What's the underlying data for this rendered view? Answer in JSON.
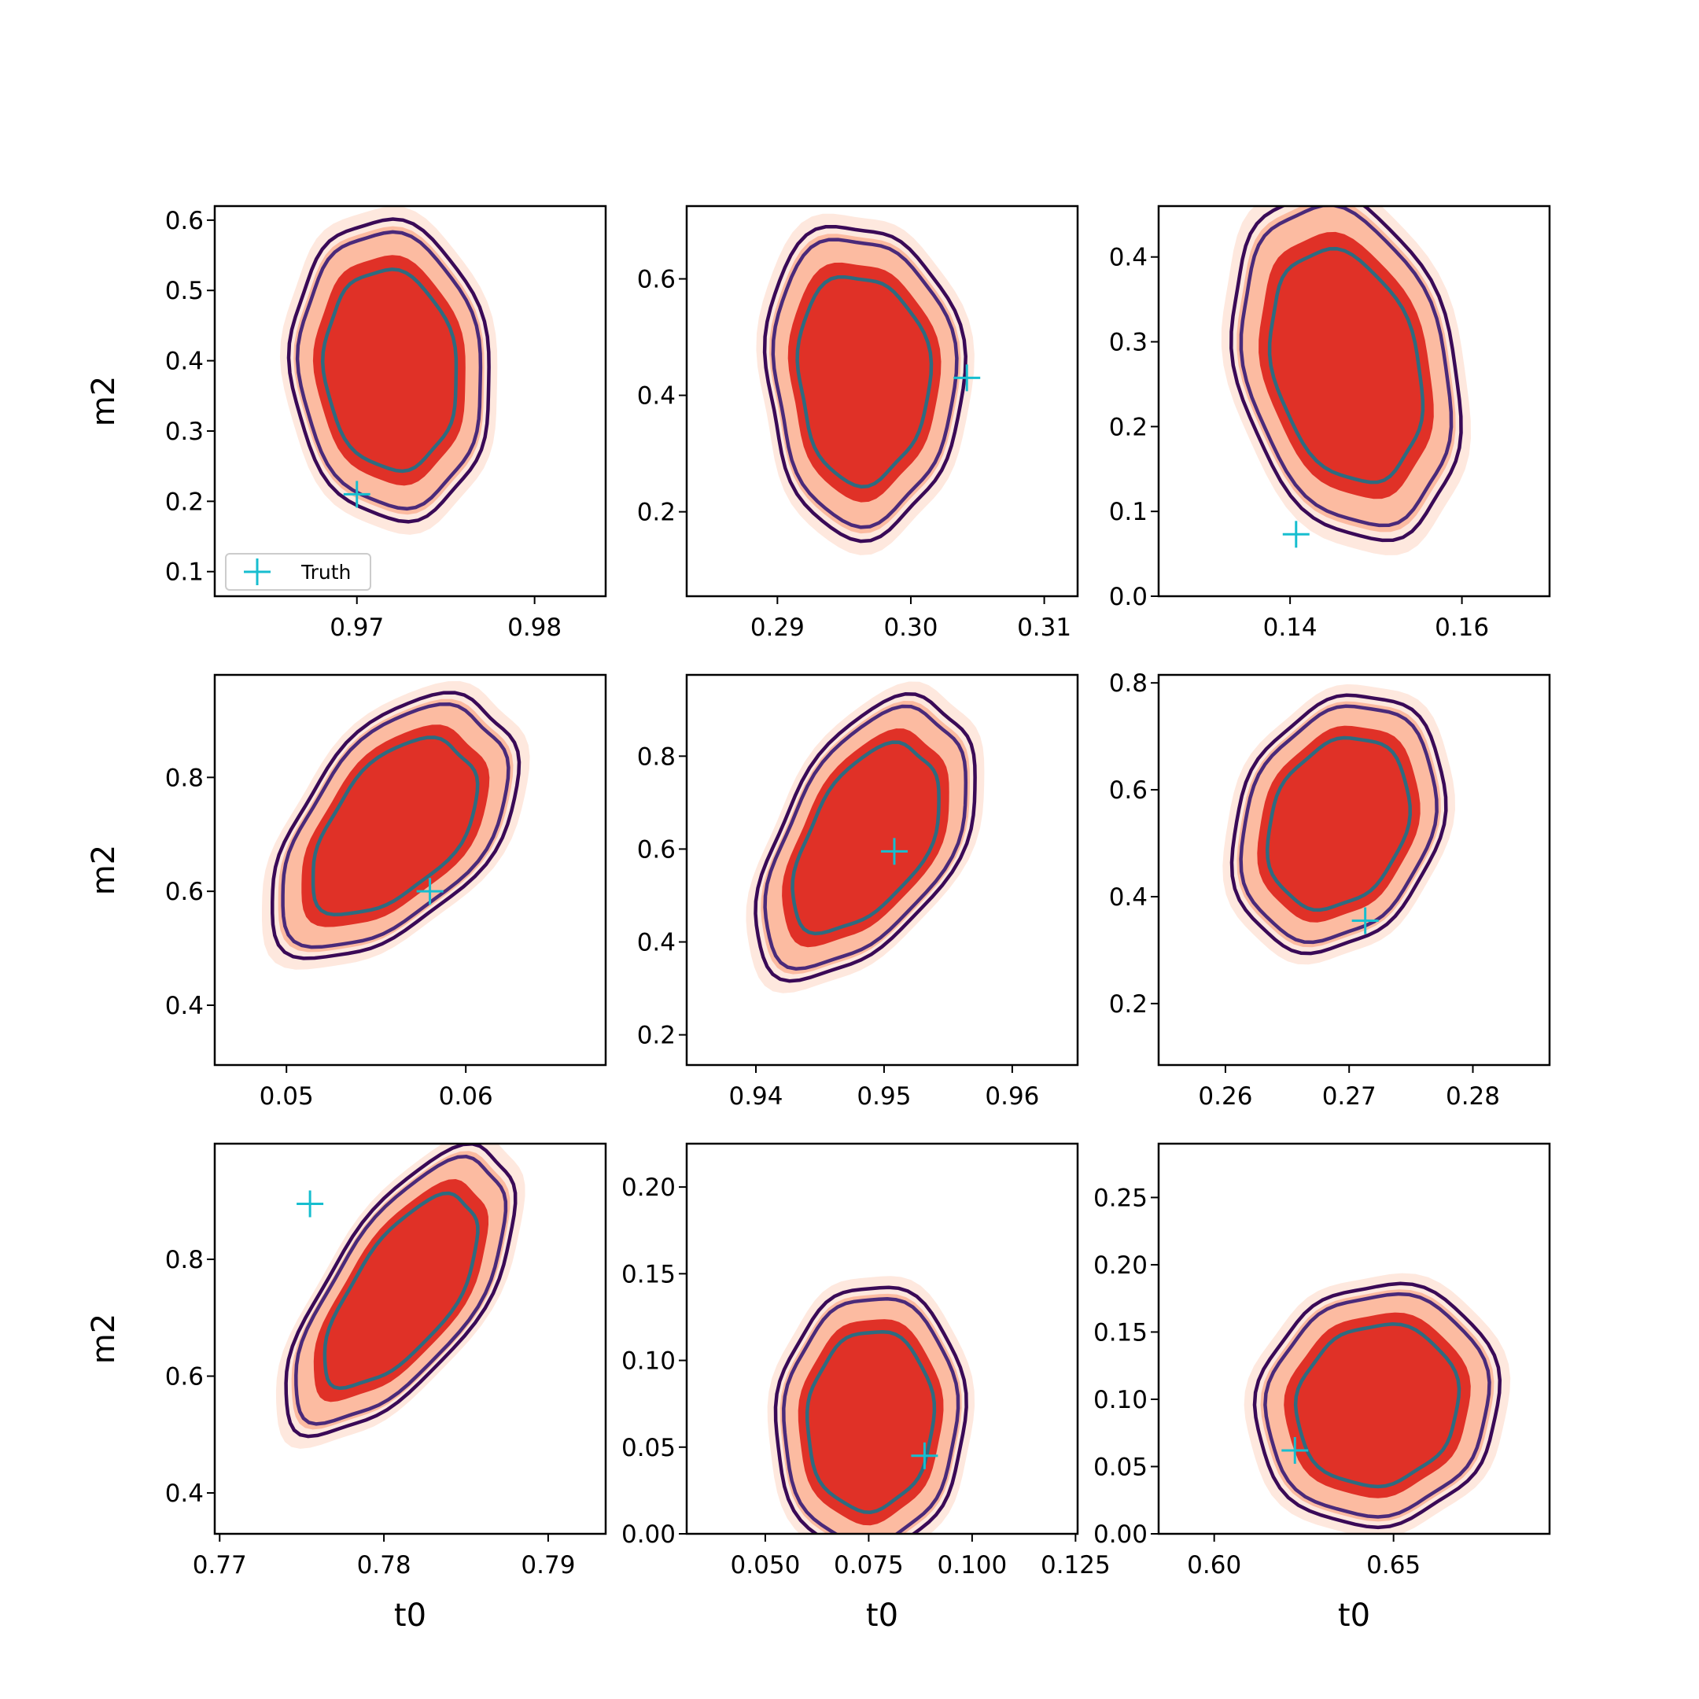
{
  "colors": {
    "fill_outer": "#fee8de",
    "fill_mid": "#fcbba1",
    "fill_inner": "#e03127",
    "contour_outer": "#3a0a57",
    "contour_mid": "#4a2a7a",
    "contour_inner": "#2e6b80",
    "truth_marker": "#17becf"
  },
  "chart_data": [
    {
      "type": "contour",
      "row": 0,
      "col": 0,
      "xlabel": "",
      "ylabel": "m2",
      "xticks": [
        "0.97",
        "0.98"
      ],
      "xtick_values": [
        0.97,
        0.98
      ],
      "yticks": [
        "0.1",
        "0.2",
        "0.3",
        "0.4",
        "0.5",
        "0.6"
      ],
      "ytick_values": [
        0.1,
        0.2,
        0.3,
        0.4,
        0.5,
        0.6
      ],
      "xlim": [
        0.962,
        0.984
      ],
      "ylim": [
        0.065,
        0.62
      ],
      "truth": [
        0.97,
        0.21
      ],
      "legend": {
        "label": "Truth",
        "placement": "lower left"
      }
    },
    {
      "type": "contour",
      "row": 0,
      "col": 1,
      "xlabel": "",
      "ylabel": "",
      "xticks": [
        "0.29",
        "0.30",
        "0.31"
      ],
      "xtick_values": [
        0.29,
        0.3,
        0.31
      ],
      "yticks": [
        "0.2",
        "0.4",
        "0.6"
      ],
      "ytick_values": [
        0.2,
        0.4,
        0.6
      ],
      "xlim": [
        0.2832,
        0.3125
      ],
      "ylim": [
        0.055,
        0.725
      ],
      "truth": [
        0.3042,
        0.43
      ]
    },
    {
      "type": "contour",
      "row": 0,
      "col": 2,
      "xlabel": "",
      "ylabel": "",
      "xticks": [
        "0.14",
        "0.16"
      ],
      "xtick_values": [
        0.14,
        0.16
      ],
      "yticks": [
        "0.0",
        "0.1",
        "0.2",
        "0.3",
        "0.4"
      ],
      "ytick_values": [
        0.0,
        0.1,
        0.2,
        0.3,
        0.4
      ],
      "xlim": [
        0.1247,
        0.1702
      ],
      "ylim": [
        0.0,
        0.46
      ],
      "truth": [
        0.1407,
        0.073
      ]
    },
    {
      "type": "contour",
      "row": 1,
      "col": 0,
      "xlabel": "",
      "ylabel": "m2",
      "xticks": [
        "0.05",
        "0.06"
      ],
      "xtick_values": [
        0.05,
        0.06
      ],
      "yticks": [
        "0.4",
        "0.6",
        "0.8"
      ],
      "ytick_values": [
        0.4,
        0.6,
        0.8
      ],
      "xlim": [
        0.046,
        0.0678
      ],
      "ylim": [
        0.295,
        0.98
      ],
      "truth": [
        0.058,
        0.6
      ]
    },
    {
      "type": "contour",
      "row": 1,
      "col": 1,
      "xlabel": "",
      "ylabel": "",
      "xticks": [
        "0.94",
        "0.95",
        "0.96"
      ],
      "xtick_values": [
        0.94,
        0.95,
        0.96
      ],
      "yticks": [
        "0.2",
        "0.4",
        "0.6",
        "0.8"
      ],
      "ytick_values": [
        0.2,
        0.4,
        0.6,
        0.8
      ],
      "xlim": [
        0.9346,
        0.9651
      ],
      "ylim": [
        0.135,
        0.975
      ],
      "truth": [
        0.9508,
        0.595
      ]
    },
    {
      "type": "contour",
      "row": 1,
      "col": 2,
      "xlabel": "",
      "ylabel": "",
      "xticks": [
        "0.26",
        "0.27",
        "0.28"
      ],
      "xtick_values": [
        0.26,
        0.27,
        0.28
      ],
      "yticks": [
        "0.2",
        "0.4",
        "0.6",
        "0.8"
      ],
      "ytick_values": [
        0.2,
        0.4,
        0.6,
        0.8
      ],
      "xlim": [
        0.2546,
        0.2862
      ],
      "ylim": [
        0.085,
        0.815
      ],
      "truth": [
        0.2713,
        0.355
      ]
    },
    {
      "type": "contour",
      "row": 2,
      "col": 0,
      "xlabel": "t0",
      "ylabel": "m2",
      "xticks": [
        "0.77",
        "0.78",
        "0.79"
      ],
      "xtick_values": [
        0.77,
        0.78,
        0.79
      ],
      "yticks": [
        "0.4",
        "0.6",
        "0.8"
      ],
      "ytick_values": [
        0.4,
        0.6,
        0.8
      ],
      "xlim": [
        0.7697,
        0.7935
      ],
      "ylim": [
        0.33,
        0.998
      ],
      "truth": [
        0.7755,
        0.895
      ]
    },
    {
      "type": "contour",
      "row": 2,
      "col": 1,
      "xlabel": "t0",
      "ylabel": "",
      "xticks": [
        "0.050",
        "0.075",
        "0.100",
        "0.125"
      ],
      "xtick_values": [
        0.05,
        0.075,
        0.1,
        0.125
      ],
      "yticks": [
        "0.00",
        "0.05",
        "0.10",
        "0.15",
        "0.20"
      ],
      "ytick_values": [
        0.0,
        0.05,
        0.1,
        0.15,
        0.2
      ],
      "xlim": [
        0.031,
        0.1255
      ],
      "ylim": [
        0.0,
        0.225
      ],
      "truth": [
        0.0885,
        0.045
      ]
    },
    {
      "type": "contour",
      "row": 2,
      "col": 2,
      "xlabel": "t0",
      "ylabel": "",
      "xticks": [
        "0.60",
        "0.65"
      ],
      "xtick_values": [
        0.6,
        0.65
      ],
      "yticks": [
        "0.00",
        "0.05",
        "0.10",
        "0.15",
        "0.20",
        "0.25"
      ],
      "ytick_values": [
        0.0,
        0.05,
        0.1,
        0.15,
        0.2,
        0.25
      ],
      "xlim": [
        0.5845,
        0.6935
      ],
      "ylim": [
        0.0,
        0.29
      ],
      "truth": [
        0.6225,
        0.062
      ]
    }
  ]
}
